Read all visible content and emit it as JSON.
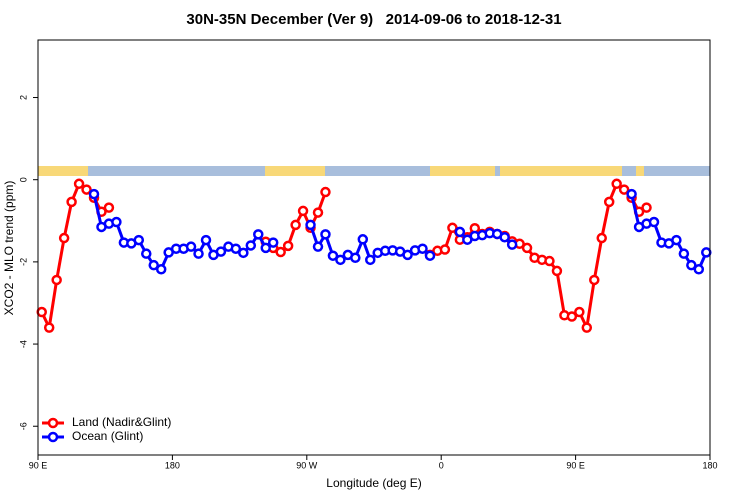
{
  "chart_data": {
    "type": "line",
    "title": "30N-35N December (Ver 9)   2014-09-06 to 2018-12-31",
    "x_label": "Longitude (deg E)",
    "y_label": "XCO2 - MLO trend (ppm)",
    "x": [
      92.5,
      97.5,
      102.5,
      107.5,
      112.5,
      117.5,
      122.5,
      127.5,
      132.5,
      137.5,
      142.5,
      147.5,
      152.5,
      157.5,
      162.5,
      167.5,
      172.5,
      177.5,
      182.5,
      187.5,
      192.5,
      197.5,
      202.5,
      207.5,
      212.5,
      217.5,
      222.5,
      227.5,
      232.5,
      237.5,
      242.5,
      247.5,
      252.5,
      257.5,
      262.5,
      267.5,
      272.5,
      277.5,
      282.5,
      287.5,
      292.5,
      297.5,
      302.5,
      307.5,
      312.5,
      317.5,
      322.5,
      327.5,
      332.5,
      337.5,
      342.5,
      347.5,
      352.5,
      357.5,
      362.5,
      367.5,
      372.5,
      377.5,
      382.5,
      387.5,
      392.5,
      397.5,
      402.5,
      407.5,
      412.5,
      417.5,
      422.5,
      427.5,
      432.5,
      437.5,
      442.5,
      447.5,
      452.5,
      457.5,
      462.5,
      467.5,
      472.5,
      477.5,
      482.5,
      487.5,
      492.5,
      497.5,
      502.5,
      507.5,
      512.5,
      517.5,
      522.5,
      527.5,
      532.5,
      537.5
    ],
    "series": [
      {
        "name": "Land (Nadir&Glint)",
        "color": "#ff0000",
        "values": [
          -3.22,
          -3.6,
          -2.44,
          -1.42,
          -0.54,
          -0.1,
          -0.24,
          -0.44,
          -0.78,
          -0.68,
          null,
          null,
          null,
          null,
          null,
          null,
          null,
          null,
          null,
          null,
          null,
          null,
          null,
          null,
          null,
          null,
          null,
          null,
          null,
          null,
          -1.51,
          -1.66,
          -1.76,
          -1.61,
          -1.1,
          -0.76,
          -1.17,
          -0.8,
          -0.3,
          null,
          null,
          null,
          null,
          null,
          null,
          null,
          null,
          null,
          null,
          null,
          null,
          null,
          -1.83,
          -1.73,
          -1.7,
          -1.17,
          -1.46,
          -1.4,
          -1.18,
          -1.32,
          -1.27,
          -1.32,
          -1.37,
          -1.5,
          -1.56,
          -1.66,
          -1.9,
          -1.95,
          -1.98,
          -2.22,
          -3.3,
          -3.33,
          -3.22,
          -3.6,
          -2.44,
          -1.42,
          -0.54,
          -0.1,
          -0.24,
          -0.44,
          -0.78,
          -0.68,
          null,
          null,
          null,
          null,
          null,
          null,
          null,
          null
        ]
      },
      {
        "name": "Ocean (Glint)",
        "color": "#0000ff",
        "values": [
          null,
          null,
          null,
          null,
          null,
          null,
          null,
          -0.35,
          -1.15,
          -1.07,
          -1.03,
          -1.53,
          -1.55,
          -1.47,
          -1.8,
          -2.08,
          -2.18,
          -1.77,
          -1.68,
          -1.68,
          -1.63,
          -1.8,
          -1.47,
          -1.83,
          -1.75,
          -1.63,
          -1.68,
          -1.78,
          -1.6,
          -1.33,
          -1.66,
          -1.53,
          null,
          null,
          null,
          null,
          -1.1,
          -1.63,
          -1.33,
          -1.85,
          -1.95,
          -1.83,
          -1.9,
          -1.45,
          -1.95,
          -1.78,
          -1.73,
          -1.72,
          -1.75,
          -1.83,
          -1.72,
          -1.68,
          -1.85,
          null,
          null,
          null,
          -1.27,
          -1.46,
          -1.37,
          -1.35,
          -1.3,
          -1.32,
          -1.4,
          -1.58,
          null,
          null,
          null,
          null,
          null,
          null,
          null,
          null,
          null,
          null,
          null,
          null,
          null,
          null,
          null,
          -0.35,
          -1.15,
          -1.07,
          -1.03,
          -1.53,
          -1.55,
          -1.47,
          -1.8,
          -2.08,
          -2.18,
          -1.77
        ]
      }
    ],
    "xlim": [
      90,
      540
    ],
    "xticks": [
      {
        "value": 90,
        "label": "90 E"
      },
      180,
      {
        "value": 270,
        "label": "90 W"
      },
      {
        "value": 360,
        "label": "0"
      },
      {
        "value": 450,
        "label": "90 E"
      },
      {
        "value": 540,
        "label": "180"
      }
    ],
    "ylim": [
      -6.7,
      3.4
    ],
    "yticks": [
      2,
      0,
      -2,
      -4,
      -6
    ],
    "grid": false,
    "legend": "bottom-left"
  }
}
